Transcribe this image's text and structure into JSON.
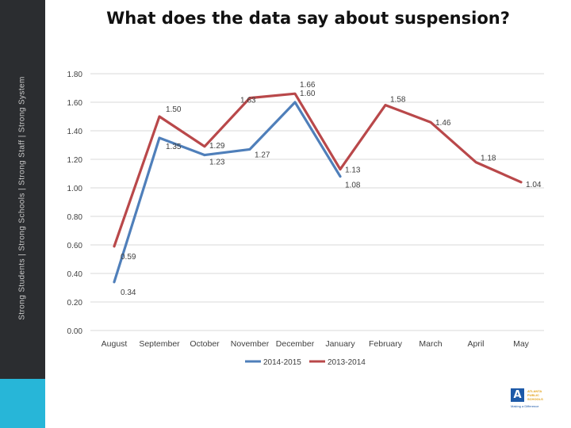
{
  "sidebar": {
    "vertical_text": "Strong Students | Strong Schools | Strong Staff | Strong System",
    "bar_color": "#2b2d30",
    "accent_color": "#27b6d8"
  },
  "logo": {
    "mark": "A",
    "lines": [
      "ATLANTA",
      "PUBLIC",
      "SCHOOLS"
    ],
    "tagline": "Making a Difference"
  },
  "chart_data": {
    "type": "line",
    "title": "What does the data say about suspension?",
    "xlabel": "",
    "ylabel": "",
    "categories": [
      "August",
      "September",
      "October",
      "November",
      "December",
      "January",
      "February",
      "March",
      "April",
      "May"
    ],
    "ylim": [
      0,
      1.8
    ],
    "yticks": [
      "0.00",
      "0.20",
      "0.40",
      "0.60",
      "0.80",
      "1.00",
      "1.20",
      "1.40",
      "1.60",
      "1.80"
    ],
    "grid": true,
    "legend": "bottom",
    "series": [
      {
        "name": "2014-2015",
        "color": "#4f7fba",
        "values": [
          0.34,
          1.35,
          1.23,
          1.27,
          1.6,
          1.08,
          null,
          null,
          null,
          null
        ],
        "labels": [
          "0.34",
          "1.35",
          "1.23",
          "1.27",
          "1.60",
          "1.08",
          "",
          "",
          "",
          ""
        ]
      },
      {
        "name": "2013-2014",
        "color": "#b9484a",
        "values": [
          0.59,
          1.5,
          1.29,
          1.63,
          1.66,
          1.13,
          1.58,
          1.46,
          1.18,
          1.04
        ],
        "labels": [
          "0.59",
          "1.50",
          "1.29",
          "1.63",
          "1.66",
          "1.13",
          "1.58",
          "1.46",
          "1.18",
          "1.04"
        ]
      }
    ]
  }
}
